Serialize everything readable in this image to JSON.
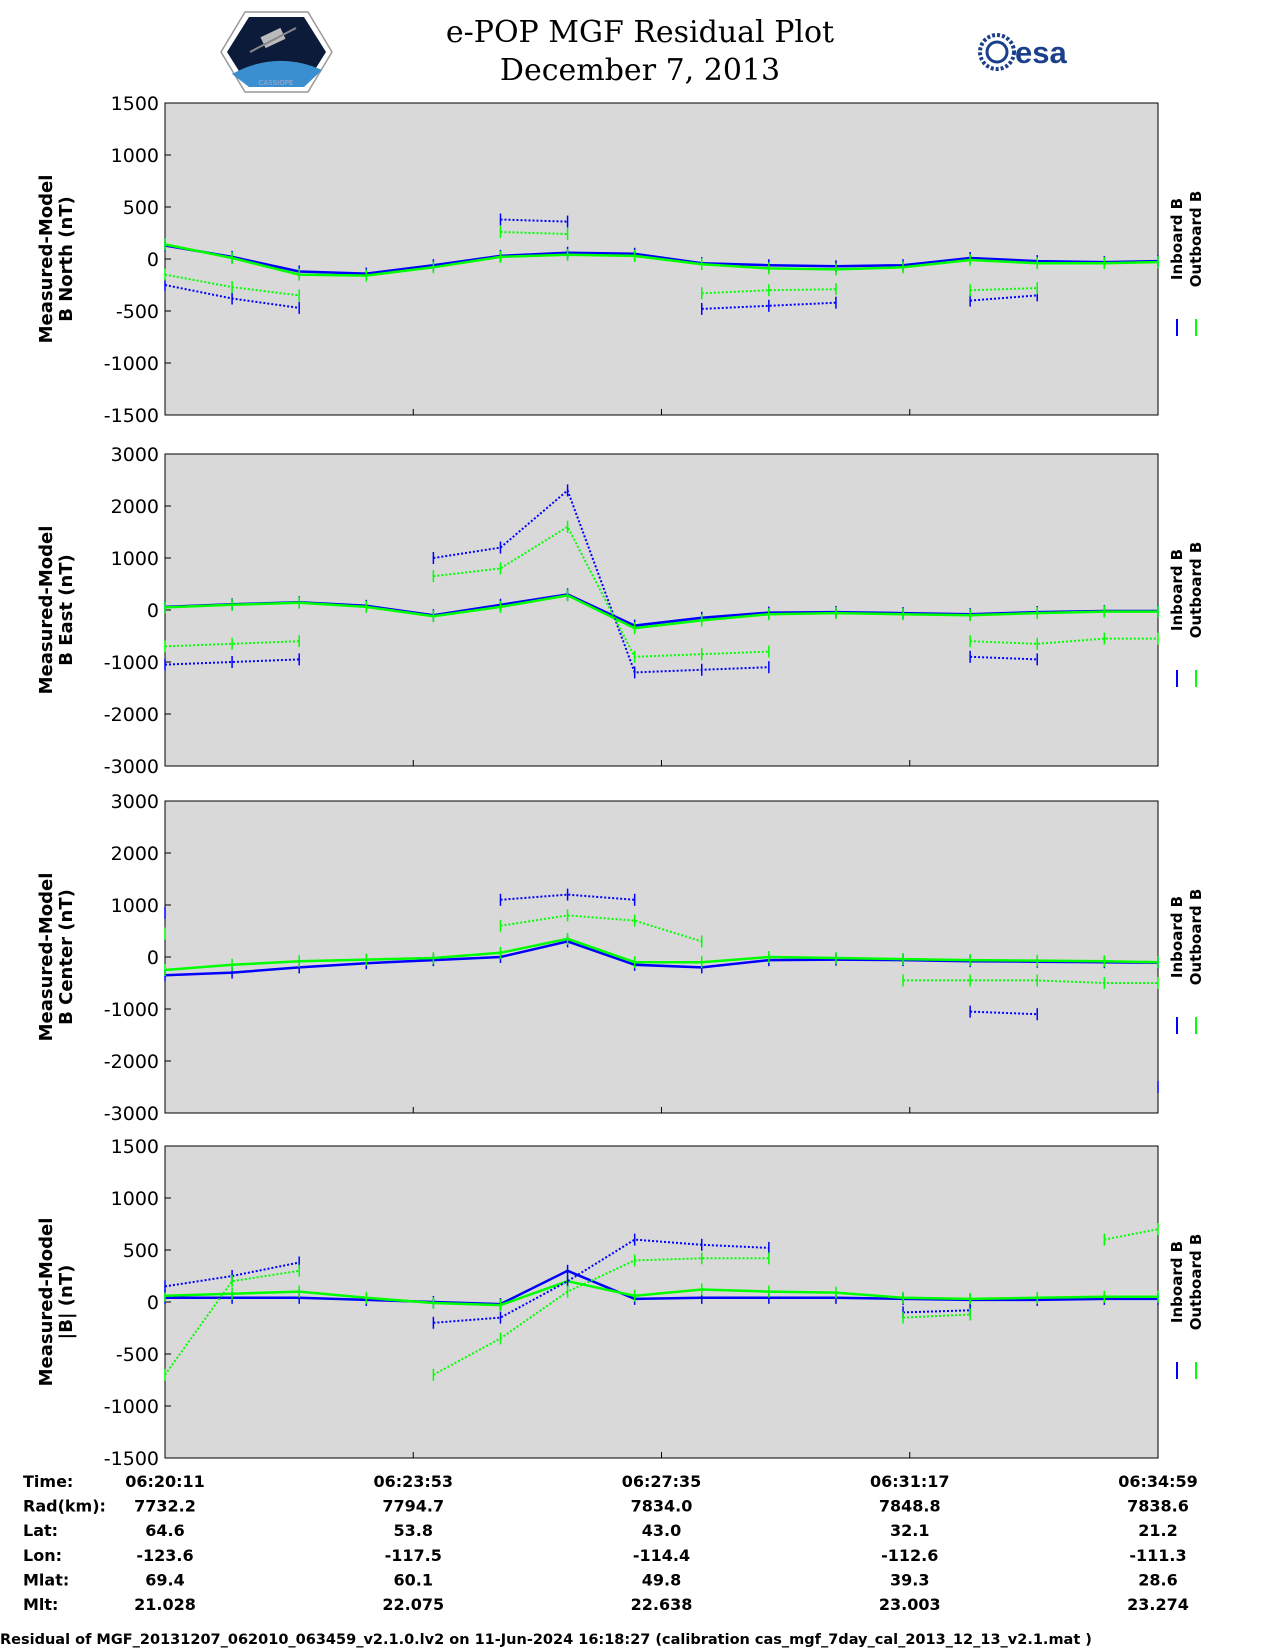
{
  "header": {
    "title_line1": "e-POP MGF Residual Plot",
    "title_line2": "December 7, 2013",
    "esa_text": "esa",
    "mission_logo": "cassiope-satellite-logo",
    "agency_logo": "esa-logo"
  },
  "colors": {
    "inboard": "#0000ff",
    "outboard": "#00ff00",
    "axes_bg": "#d9d9d9"
  },
  "chart_data": [
    {
      "type": "line",
      "ylabel_line1": "Measured-Model",
      "ylabel_line2": "B North (nT)",
      "ylim": [
        -1500,
        1500
      ],
      "yticks": [
        1500,
        1000,
        500,
        0,
        -500,
        -1000,
        -1500
      ],
      "legend": [
        "Inboard B",
        "Outboard B"
      ],
      "x": [
        0,
        60,
        120,
        180,
        240,
        300,
        360,
        420,
        480,
        540,
        600,
        660,
        720,
        780,
        840,
        888
      ],
      "series": [
        {
          "name": "Inboard B",
          "values": [
            130,
            20,
            -120,
            -140,
            -60,
            30,
            60,
            50,
            -40,
            -60,
            -70,
            -60,
            10,
            -20,
            -30,
            -20
          ]
        },
        {
          "name": "Outboard B",
          "values": [
            140,
            10,
            -150,
            -160,
            -80,
            20,
            40,
            30,
            -50,
            -90,
            -100,
            -80,
            -10,
            -40,
            -40,
            -30
          ]
        },
        {
          "name": "Inboard B secondary",
          "values": [
            -250,
            -380,
            -470,
            null,
            null,
            380,
            360,
            null,
            -480,
            -450,
            -420,
            null,
            -400,
            -350,
            null,
            null
          ]
        },
        {
          "name": "Outboard B secondary",
          "values": [
            -150,
            -270,
            -350,
            null,
            null,
            260,
            240,
            null,
            -330,
            -300,
            -290,
            null,
            -300,
            -280,
            null,
            null
          ]
        }
      ]
    },
    {
      "type": "line",
      "ylabel_line1": "Measured-Model",
      "ylabel_line2": "B East (nT)",
      "ylim": [
        -3000,
        3000
      ],
      "yticks": [
        3000,
        2000,
        1000,
        0,
        -1000,
        -2000,
        -3000
      ],
      "legend": [
        "Inboard B",
        "Outboard B"
      ],
      "x": [
        0,
        60,
        120,
        180,
        240,
        300,
        360,
        420,
        480,
        540,
        600,
        660,
        720,
        780,
        840,
        888
      ],
      "series": [
        {
          "name": "Inboard B",
          "values": [
            60,
            110,
            150,
            80,
            -100,
            100,
            300,
            -300,
            -150,
            -50,
            -40,
            -60,
            -80,
            -40,
            -20,
            -20
          ]
        },
        {
          "name": "Outboard B",
          "values": [
            50,
            100,
            140,
            60,
            -120,
            60,
            280,
            -350,
            -200,
            -80,
            -60,
            -80,
            -100,
            -60,
            -30,
            -30
          ]
        },
        {
          "name": "Inboard B secondary",
          "values": [
            -1050,
            -1000,
            -950,
            null,
            1000,
            1200,
            2300,
            -1200,
            -1150,
            -1100,
            null,
            null,
            -900,
            -950,
            null,
            null
          ]
        },
        {
          "name": "Outboard B secondary",
          "values": [
            -700,
            -650,
            -600,
            null,
            650,
            800,
            1600,
            -900,
            -850,
            -800,
            null,
            null,
            -600,
            -650,
            -550,
            -550
          ]
        }
      ]
    },
    {
      "type": "line",
      "ylabel_line1": "Measured-Model",
      "ylabel_line2": "B Center (nT)",
      "ylim": [
        -3000,
        3000
      ],
      "yticks": [
        3000,
        2000,
        1000,
        0,
        -1000,
        -2000,
        -3000
      ],
      "legend": [
        "Inboard B",
        "Outboard B"
      ],
      "x": [
        0,
        60,
        120,
        180,
        240,
        300,
        360,
        420,
        480,
        540,
        600,
        660,
        720,
        780,
        840,
        888
      ],
      "series": [
        {
          "name": "Inboard B",
          "values": [
            -350,
            -300,
            -200,
            -120,
            -60,
            0,
            300,
            -150,
            -200,
            -60,
            -50,
            -60,
            -80,
            -90,
            -100,
            -110
          ]
        },
        {
          "name": "Outboard B",
          "values": [
            -250,
            -150,
            -80,
            -50,
            -20,
            80,
            350,
            -100,
            -100,
            0,
            -20,
            -40,
            -60,
            -70,
            -80,
            -100
          ]
        },
        {
          "name": "Inboard B secondary",
          "values": [
            850,
            null,
            null,
            null,
            null,
            1100,
            1200,
            1100,
            null,
            null,
            null,
            null,
            -1050,
            -1100,
            null,
            -2500
          ]
        },
        {
          "name": "Outboard B secondary",
          "values": [
            450,
            null,
            null,
            null,
            null,
            600,
            800,
            700,
            300,
            null,
            null,
            -450,
            -450,
            -450,
            -500,
            -500
          ]
        }
      ]
    },
    {
      "type": "line",
      "ylabel_line1": "Measured-Model",
      "ylabel_line2": "|B| (nT)",
      "ylim": [
        -1500,
        1500
      ],
      "yticks": [
        1500,
        1000,
        500,
        0,
        -500,
        -1000,
        -1500
      ],
      "legend": [
        "Inboard B",
        "Outboard B"
      ],
      "x": [
        0,
        60,
        120,
        180,
        240,
        300,
        360,
        420,
        480,
        540,
        600,
        660,
        720,
        780,
        840,
        888
      ],
      "series": [
        {
          "name": "Inboard B",
          "values": [
            40,
            40,
            40,
            20,
            0,
            -20,
            300,
            30,
            40,
            40,
            40,
            30,
            20,
            20,
            30,
            30
          ]
        },
        {
          "name": "Outboard B",
          "values": [
            60,
            80,
            100,
            40,
            -10,
            -30,
            200,
            60,
            120,
            100,
            90,
            40,
            30,
            40,
            50,
            50
          ]
        },
        {
          "name": "Inboard B secondary",
          "values": [
            150,
            250,
            380,
            null,
            -200,
            -150,
            200,
            600,
            550,
            520,
            null,
            -100,
            -80,
            null,
            null,
            null
          ]
        },
        {
          "name": "Outboard B secondary",
          "values": [
            -700,
            200,
            300,
            null,
            -700,
            -350,
            100,
            400,
            420,
            420,
            null,
            -150,
            -120,
            null,
            600,
            700
          ]
        }
      ]
    }
  ],
  "x_axis": {
    "times": [
      "06:20:11",
      "06:23:53",
      "06:27:35",
      "06:31:17",
      "06:34:59"
    ]
  },
  "info_rows": [
    {
      "label": "Time:",
      "values": [
        "06:20:11",
        "06:23:53",
        "06:27:35",
        "06:31:17",
        "06:34:59"
      ]
    },
    {
      "label": "Rad(km):",
      "values": [
        "7732.2",
        "7794.7",
        "7834.0",
        "7848.8",
        "7838.6"
      ]
    },
    {
      "label": "Lat:",
      "values": [
        "64.6",
        "53.8",
        "43.0",
        "32.1",
        "21.2"
      ]
    },
    {
      "label": "Lon:",
      "values": [
        "-123.6",
        "-117.5",
        "-114.4",
        "-112.6",
        "-111.3"
      ]
    },
    {
      "label": "Mlat:",
      "values": [
        "69.4",
        "60.1",
        "49.8",
        "39.3",
        "28.6"
      ]
    },
    {
      "label": "Mlt:",
      "values": [
        "21.028",
        "22.075",
        "22.638",
        "23.003",
        "23.274"
      ]
    }
  ],
  "footer": "Residual of MGF_20131207_062010_063459_v2.1.0.lv2 on 11-Jun-2024 16:18:27 (calibration cas_mgf_7day_cal_2013_12_13_v2.1.mat )"
}
